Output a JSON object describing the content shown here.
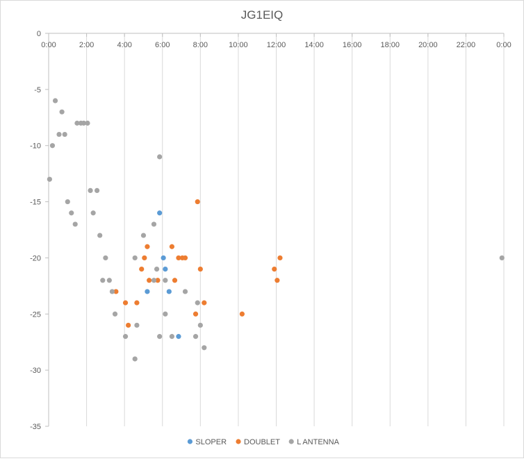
{
  "chart_data": {
    "type": "scatter",
    "title": "JG1EIQ",
    "xlabel": "",
    "ylabel": "",
    "x_unit": "hours",
    "xlim": [
      0,
      24
    ],
    "ylim": [
      -35,
      0
    ],
    "x_ticks": [
      0,
      2,
      4,
      6,
      8,
      10,
      12,
      14,
      16,
      18,
      20,
      22,
      24
    ],
    "x_tick_labels": [
      "0:00",
      "2:00",
      "4:00",
      "6:00",
      "8:00",
      "10:00",
      "12:00",
      "14:00",
      "16:00",
      "18:00",
      "20:00",
      "22:00",
      "0:00"
    ],
    "y_ticks": [
      0,
      -5,
      -10,
      -15,
      -20,
      -25,
      -30,
      -35
    ],
    "y_tick_labels": [
      "0",
      "-5",
      "-10",
      "-15",
      "-20",
      "-25",
      "-30",
      "-35"
    ],
    "grid": "vertical",
    "legend": "bottom",
    "series": [
      {
        "name": "SLOPER",
        "color": "#5b9bd5",
        "points": [
          [
            5.85,
            -16
          ],
          [
            6.05,
            -20
          ],
          [
            6.15,
            -21
          ],
          [
            5.2,
            -23
          ],
          [
            6.35,
            -23
          ],
          [
            6.85,
            -27
          ]
        ]
      },
      {
        "name": "DOUBLET",
        "color": "#ed7d31",
        "points": [
          [
            7.85,
            -15
          ],
          [
            5.2,
            -19
          ],
          [
            6.5,
            -19
          ],
          [
            5.05,
            -20
          ],
          [
            6.85,
            -20
          ],
          [
            7.05,
            -20
          ],
          [
            7.2,
            -20
          ],
          [
            12.2,
            -20
          ],
          [
            4.9,
            -21
          ],
          [
            8.0,
            -21
          ],
          [
            11.9,
            -21
          ],
          [
            5.3,
            -22
          ],
          [
            5.75,
            -22
          ],
          [
            6.65,
            -22
          ],
          [
            12.05,
            -22
          ],
          [
            3.55,
            -23
          ],
          [
            4.05,
            -24
          ],
          [
            4.65,
            -24
          ],
          [
            8.2,
            -24
          ],
          [
            7.75,
            -25
          ],
          [
            10.2,
            -25
          ],
          [
            4.2,
            -26
          ]
        ]
      },
      {
        "name": "L ANTENNA",
        "color": "#a5a5a5",
        "points": [
          [
            0.35,
            -6
          ],
          [
            0.7,
            -7
          ],
          [
            1.5,
            -8
          ],
          [
            1.7,
            -8
          ],
          [
            1.85,
            -8
          ],
          [
            2.05,
            -8
          ],
          [
            0.55,
            -9
          ],
          [
            0.85,
            -9
          ],
          [
            0.2,
            -10
          ],
          [
            5.85,
            -11
          ],
          [
            0.05,
            -13
          ],
          [
            2.2,
            -14
          ],
          [
            2.55,
            -14
          ],
          [
            1.0,
            -15
          ],
          [
            1.2,
            -16
          ],
          [
            2.35,
            -16
          ],
          [
            1.4,
            -17
          ],
          [
            5.55,
            -17
          ],
          [
            2.7,
            -18
          ],
          [
            5.0,
            -18
          ],
          [
            3.0,
            -20
          ],
          [
            4.55,
            -20
          ],
          [
            5.7,
            -21
          ],
          [
            2.85,
            -22
          ],
          [
            3.2,
            -22
          ],
          [
            5.55,
            -22
          ],
          [
            6.15,
            -22
          ],
          [
            3.35,
            -23
          ],
          [
            7.2,
            -23
          ],
          [
            7.85,
            -24
          ],
          [
            3.5,
            -25
          ],
          [
            6.15,
            -25
          ],
          [
            4.65,
            -26
          ],
          [
            8.0,
            -26
          ],
          [
            4.05,
            -27
          ],
          [
            5.85,
            -27
          ],
          [
            6.5,
            -27
          ],
          [
            7.75,
            -27
          ],
          [
            8.2,
            -28
          ],
          [
            4.55,
            -29
          ],
          [
            23.9,
            -20
          ]
        ]
      }
    ]
  }
}
